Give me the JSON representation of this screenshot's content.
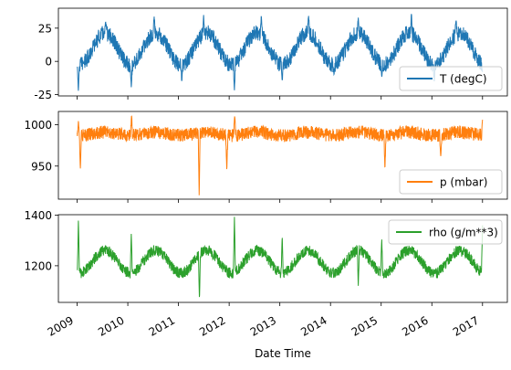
{
  "chart_data": {
    "type": "line",
    "xlabel": "Date Time",
    "x_ticks": [
      "2009",
      "2010",
      "2011",
      "2012",
      "2013",
      "2014",
      "2015",
      "2016",
      "2017"
    ],
    "xlim": [
      "2009",
      "2017"
    ],
    "panels": [
      {
        "name": "T (degC)",
        "color": "#1f77b4",
        "ylim": [
          -26,
          40
        ],
        "y_ticks": [
          -25,
          0,
          25
        ],
        "legend_loc": "lower-right",
        "profile": {
          "mean": 9.5,
          "seasonal_amplitude": 12,
          "noise": 6
        },
        "points": [
          {
            "x": "2009-01-01",
            "y": -4
          },
          {
            "x": "2009-01-10",
            "y": -23
          },
          {
            "x": "2009-02-15",
            "y": -1
          },
          {
            "x": "2009-07-25",
            "y": 30
          },
          {
            "x": "2010-01-26",
            "y": -20
          },
          {
            "x": "2010-07-10",
            "y": 34
          },
          {
            "x": "2011-01-25",
            "y": -16
          },
          {
            "x": "2011-07-01",
            "y": 35
          },
          {
            "x": "2012-02-08",
            "y": -22
          },
          {
            "x": "2012-08-20",
            "y": 35
          },
          {
            "x": "2013-01-18",
            "y": -15
          },
          {
            "x": "2013-07-27",
            "y": 35
          },
          {
            "x": "2014-01-26",
            "y": -10
          },
          {
            "x": "2014-07-20",
            "y": 33
          },
          {
            "x": "2015-01-05",
            "y": -12
          },
          {
            "x": "2015-08-07",
            "y": 37
          },
          {
            "x": "2016-01-18",
            "y": -16
          },
          {
            "x": "2016-06-24",
            "y": 32
          },
          {
            "x": "2017-01-01",
            "y": -8
          }
        ]
      },
      {
        "name": "p (mbar)",
        "color": "#ff7f0e",
        "ylim": [
          910,
          1016
        ],
        "y_ticks": [
          950,
          1000
        ],
        "legend_loc": "lower-right",
        "profile": {
          "mean": 989,
          "seasonal_amplitude": 2,
          "noise": 8
        },
        "points": [
          {
            "x": "2009-01-10",
            "y": 1005
          },
          {
            "x": "2009-01-24",
            "y": 945
          },
          {
            "x": "2010-01-28",
            "y": 1013
          },
          {
            "x": "2011-05-30",
            "y": 914
          },
          {
            "x": "2011-12-15",
            "y": 943
          },
          {
            "x": "2012-02-10",
            "y": 1012
          },
          {
            "x": "2015-01-28",
            "y": 945
          },
          {
            "x": "2016-03-05",
            "y": 960
          },
          {
            "x": "2017-01-01",
            "y": 1006
          }
        ]
      },
      {
        "name": "rho (g/m**3)",
        "color": "#2ca02c",
        "ylim": [
          1055,
          1402
        ],
        "y_ticks": [
          1200,
          1400
        ],
        "legend_loc": "upper-right",
        "profile": {
          "mean": 1216,
          "seasonal_amplitude": 45,
          "noise": 22
        },
        "points": [
          {
            "x": "2009-01-10",
            "y": 1385
          },
          {
            "x": "2010-01-26",
            "y": 1330
          },
          {
            "x": "2011-06-01",
            "y": 1060
          },
          {
            "x": "2012-02-08",
            "y": 1395
          },
          {
            "x": "2013-01-18",
            "y": 1320
          },
          {
            "x": "2014-07-20",
            "y": 1120
          },
          {
            "x": "2015-01-05",
            "y": 1310
          },
          {
            "x": "2017-01-01",
            "y": 1360
          }
        ]
      }
    ]
  }
}
